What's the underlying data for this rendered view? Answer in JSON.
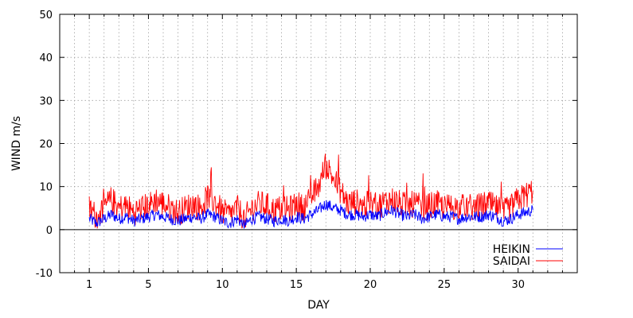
{
  "chart_data": {
    "type": "line",
    "title": "",
    "xlabel": "DAY",
    "ylabel": "WIND m/s",
    "xlim": [
      -1,
      34
    ],
    "ylim": [
      -10,
      50
    ],
    "x_ticks": [
      1,
      5,
      10,
      15,
      20,
      25,
      30
    ],
    "y_ticks": [
      -10,
      0,
      10,
      20,
      30,
      40,
      50
    ],
    "grid": true,
    "zero_line": true,
    "legend": "bottom-right",
    "x_range": [
      1,
      31
    ],
    "series": [
      {
        "name": "HEIKIN",
        "color": "#0000ff",
        "x": [
          1.0,
          1.5,
          2.0,
          2.5,
          3.0,
          3.5,
          4.0,
          4.5,
          5.0,
          5.5,
          6.0,
          6.5,
          7.0,
          7.5,
          8.0,
          8.5,
          9.0,
          9.5,
          10.0,
          10.5,
          11.0,
          11.5,
          12.0,
          12.5,
          13.0,
          13.5,
          14.0,
          14.5,
          15.0,
          15.5,
          16.0,
          16.5,
          17.0,
          17.5,
          18.0,
          18.5,
          19.0,
          19.5,
          20.0,
          20.5,
          21.0,
          21.5,
          22.0,
          22.5,
          23.0,
          23.5,
          24.0,
          24.5,
          25.0,
          25.5,
          26.0,
          26.5,
          27.0,
          27.5,
          28.0,
          28.5,
          29.0,
          29.5,
          30.0,
          30.5,
          31.0
        ],
        "values": [
          2.5,
          1.5,
          2.5,
          3.5,
          2.5,
          3.0,
          2.0,
          2.5,
          3.0,
          3.5,
          3.0,
          2.5,
          2.0,
          2.5,
          3.0,
          2.5,
          3.5,
          3.0,
          2.0,
          1.5,
          2.5,
          1.0,
          2.5,
          3.0,
          2.5,
          2.0,
          2.5,
          2.0,
          3.0,
          2.5,
          3.5,
          4.5,
          6.0,
          5.0,
          4.5,
          3.5,
          3.5,
          3.0,
          3.5,
          3.0,
          4.0,
          4.5,
          3.5,
          3.0,
          3.5,
          2.5,
          3.0,
          3.5,
          3.0,
          3.0,
          2.5,
          3.0,
          3.0,
          3.0,
          3.5,
          3.0,
          2.0,
          2.5,
          3.5,
          4.0,
          4.5
        ]
      },
      {
        "name": "SAIDAI",
        "color": "#ff0000",
        "x": [
          1.0,
          1.5,
          2.0,
          2.5,
          3.0,
          3.5,
          4.0,
          4.5,
          5.0,
          5.5,
          6.0,
          6.5,
          7.0,
          7.5,
          8.0,
          8.5,
          9.0,
          9.5,
          10.0,
          10.5,
          11.0,
          11.5,
          12.0,
          12.5,
          13.0,
          13.5,
          14.0,
          14.5,
          15.0,
          15.5,
          16.0,
          16.5,
          17.0,
          17.5,
          18.0,
          18.5,
          19.0,
          19.5,
          20.0,
          20.5,
          21.0,
          21.5,
          22.0,
          22.5,
          23.0,
          23.5,
          24.0,
          24.5,
          25.0,
          25.5,
          26.0,
          26.5,
          27.0,
          27.5,
          28.0,
          28.5,
          29.0,
          29.5,
          30.0,
          30.5,
          31.0
        ],
        "values": [
          5.0,
          3.0,
          5.0,
          7.0,
          5.0,
          5.5,
          4.0,
          5.0,
          5.5,
          7.0,
          6.0,
          5.0,
          4.0,
          5.0,
          6.0,
          5.0,
          7.5,
          6.5,
          4.0,
          3.5,
          5.0,
          2.5,
          5.0,
          6.0,
          5.5,
          4.5,
          5.0,
          4.5,
          6.0,
          5.0,
          7.5,
          10.0,
          15.0,
          12.0,
          9.0,
          6.0,
          6.5,
          5.5,
          6.0,
          5.5,
          6.5,
          7.0,
          6.0,
          5.5,
          6.0,
          5.0,
          5.5,
          6.0,
          5.0,
          5.5,
          5.0,
          5.5,
          5.0,
          5.5,
          6.0,
          5.0,
          4.0,
          5.0,
          7.0,
          8.0,
          9.0
        ]
      }
    ]
  }
}
